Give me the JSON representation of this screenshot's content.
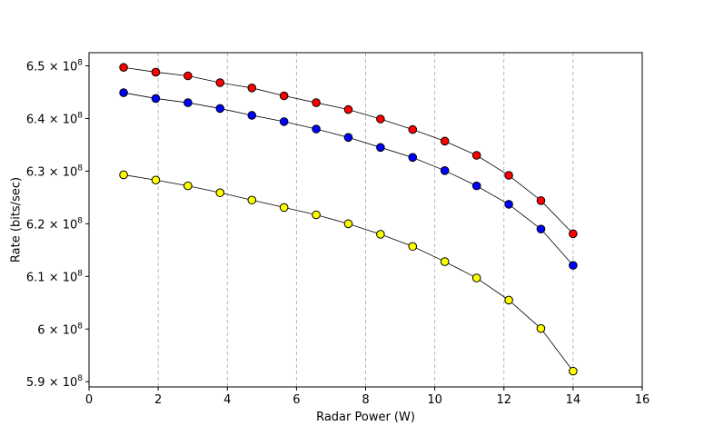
{
  "chart_data": {
    "type": "line",
    "xlabel": "Radar Power (W)",
    "ylabel": "Rate (bits/sec)",
    "xlim": [
      0,
      16
    ],
    "ylim": [
      589000000.0,
      652500000.0
    ],
    "x_ticks": [
      0,
      2,
      4,
      6,
      8,
      10,
      12,
      14,
      16
    ],
    "y_ticks": [
      {
        "value": 590000000.0,
        "mantissa": "5.9",
        "exp": "8"
      },
      {
        "value": 600000000.0,
        "mantissa": "6",
        "exp": "8"
      },
      {
        "value": 610000000.0,
        "mantissa": "6.1",
        "exp": "8"
      },
      {
        "value": 620000000.0,
        "mantissa": "6.2",
        "exp": "8"
      },
      {
        "value": 630000000.0,
        "mantissa": "6.3",
        "exp": "8"
      },
      {
        "value": 640000000.0,
        "mantissa": "6.4",
        "exp": "8"
      },
      {
        "value": 650000000.0,
        "mantissa": "6.5",
        "exp": "8"
      }
    ],
    "times_symbol": "×",
    "base": "10",
    "grid": "vertical dashed at x ticks",
    "legend": "none",
    "x": [
      1.0,
      1.93,
      2.86,
      3.79,
      4.71,
      5.64,
      6.57,
      7.5,
      8.43,
      9.36,
      10.29,
      11.21,
      12.14,
      13.07,
      14.0
    ],
    "series": [
      {
        "color": "#ff0000",
        "values": [
          649700000.0,
          648800000.0,
          648100000.0,
          646800000.0,
          645800000.0,
          644300000.0,
          643000000.0,
          641700000.0,
          639900000.0,
          637900000.0,
          635700000.0,
          633000000.0,
          629200000.0,
          624400000.0,
          618100000.0
        ]
      },
      {
        "color": "#0000ff",
        "values": [
          644900000.0,
          643800000.0,
          643000000.0,
          641900000.0,
          640600000.0,
          639400000.0,
          638000000.0,
          636400000.0,
          634500000.0,
          632600000.0,
          630100000.0,
          627200000.0,
          623700000.0,
          619000000.0,
          612100000.0
        ]
      },
      {
        "color": "#ffff00",
        "values": [
          629300000.0,
          628300000.0,
          627200000.0,
          625900000.0,
          624500000.0,
          623100000.0,
          621700000.0,
          620000000.0,
          618000000.0,
          615700000.0,
          612800000.0,
          609700000.0,
          605500000.0,
          600100000.0,
          592000000.0
        ]
      }
    ]
  }
}
